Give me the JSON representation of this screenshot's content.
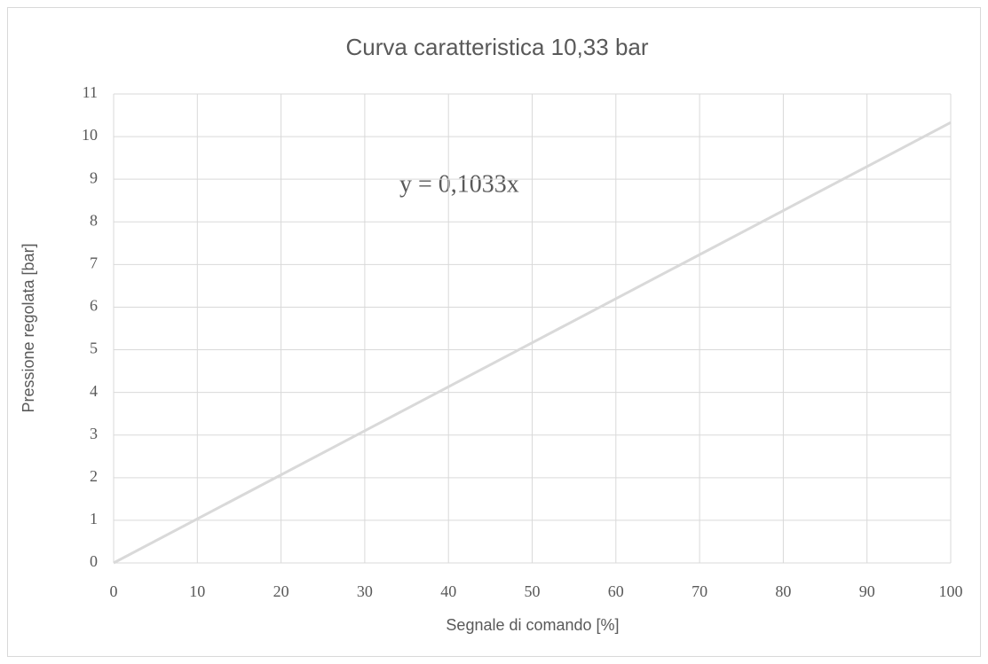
{
  "chart_data": {
    "type": "line",
    "title": "Curva caratteristica 10,33 bar",
    "x_label": "Segnale di comando [%]",
    "y_label": "Pressione regolata [bar]",
    "annotation": "y = 0,1033x",
    "x": [
      0,
      100
    ],
    "values": [
      0,
      10.33
    ],
    "color": "#d9d9d9",
    "xlim": [
      0,
      100
    ],
    "xticks": [
      0,
      10,
      20,
      30,
      40,
      50,
      60,
      70,
      80,
      90,
      100
    ],
    "ylim": [
      0,
      11
    ],
    "yticks": [
      0,
      1,
      2,
      3,
      4,
      5,
      6,
      7,
      8,
      9,
      10,
      11
    ],
    "grid": true
  }
}
